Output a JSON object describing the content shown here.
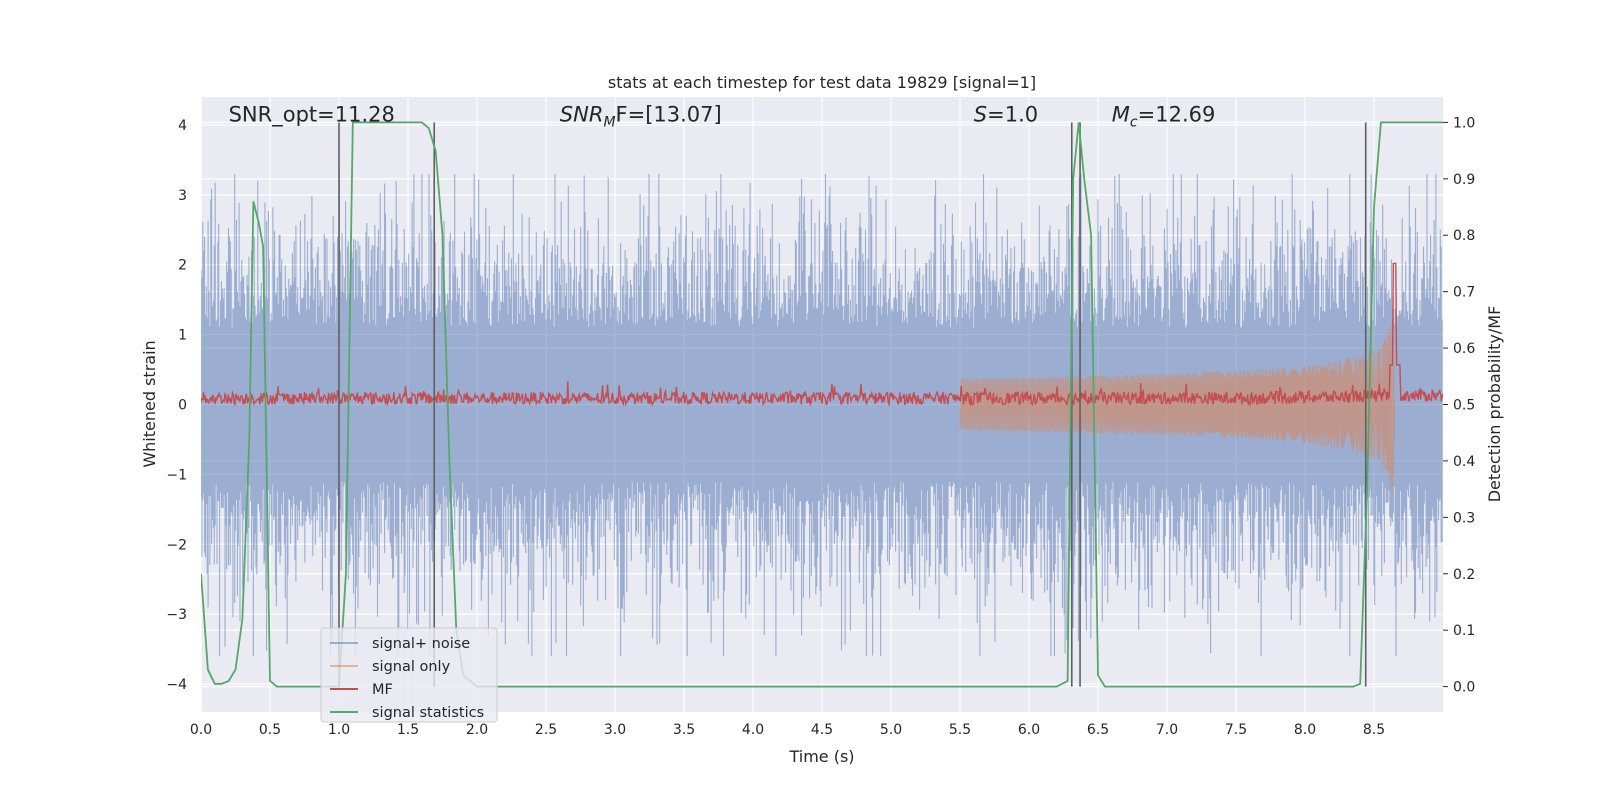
{
  "chart_data": {
    "type": "line",
    "title": "stats at each timestep for test data 19829 [signal=1]",
    "xlabel": "Time (s)",
    "ylabel": "Whitened strain",
    "y2label": "Detection probability/MF",
    "xlim": [
      0,
      9.0
    ],
    "ylim": [
      -4.4,
      4.4
    ],
    "y2lim": [
      -0.045,
      1.045
    ],
    "xticks": [
      0.0,
      0.5,
      1.0,
      1.5,
      2.0,
      2.5,
      3.0,
      3.5,
      4.0,
      4.5,
      5.0,
      5.5,
      6.0,
      6.5,
      7.0,
      7.5,
      8.0,
      8.5
    ],
    "xtick_labels": [
      "0.0",
      "0.5",
      "1.0",
      "1.5",
      "2.0",
      "2.5",
      "3.0",
      "3.5",
      "4.0",
      "4.5",
      "5.0",
      "5.5",
      "6.0",
      "6.5",
      "7.0",
      "7.5",
      "8.0",
      "8.5"
    ],
    "yticks": [
      4,
      3,
      2,
      1,
      0,
      -1,
      -2,
      -3,
      -4
    ],
    "ytick_labels": [
      "4",
      "3",
      "2",
      "1",
      "0",
      "−1",
      "−2",
      "−3",
      "−4"
    ],
    "y2ticks": [
      1.0,
      0.9,
      0.8,
      0.7,
      0.6,
      0.5,
      0.4,
      0.3,
      0.2,
      0.1,
      0.0
    ],
    "y2tick_labels": [
      "1.0",
      "0.9",
      "0.8",
      "0.7",
      "0.6",
      "0.5",
      "0.4",
      "0.3",
      "0.2",
      "0.1",
      "0.0"
    ],
    "grid": true,
    "legend_placement": "lower-left",
    "series": [
      {
        "name": "signal+ noise",
        "color": "#4c72b0",
        "kind": "noise band",
        "envelope_low": -3.6,
        "envelope_high": 3.3
      },
      {
        "name": "signal only",
        "color": "#dd8452",
        "kind": "chirp",
        "start_x": 5.5,
        "peak_x": 8.65,
        "peak_amplitude": 2.0
      },
      {
        "name": "MF",
        "color": "#c44e52",
        "axis": "right",
        "baseline": 0.51,
        "peak_x": 8.65,
        "peak_value": 0.75
      },
      {
        "name": "signal statistics",
        "color": "#55a868",
        "axis": "right",
        "x": [
          0.0,
          0.05,
          0.1,
          0.15,
          0.2,
          0.25,
          0.3,
          0.35,
          0.38,
          0.42,
          0.45,
          0.5,
          0.55,
          0.6,
          0.8,
          1.0,
          1.05,
          1.1,
          1.2,
          1.4,
          1.5,
          1.6,
          1.65,
          1.7,
          1.75,
          1.8,
          1.85,
          1.9,
          2.0,
          2.5,
          3.0,
          3.5,
          4.0,
          4.5,
          5.0,
          5.5,
          6.0,
          6.2,
          6.28,
          6.32,
          6.36,
          6.4,
          6.45,
          6.5,
          6.55,
          6.6,
          7.0,
          7.5,
          8.0,
          8.3,
          8.35,
          8.4,
          8.45,
          8.5,
          8.55,
          8.6,
          8.65,
          8.7,
          9.0
        ],
        "y": [
          0.2,
          0.03,
          0.005,
          0.005,
          0.01,
          0.03,
          0.12,
          0.44,
          0.86,
          0.82,
          0.78,
          0.01,
          0.0,
          0.0,
          0.0,
          0.0,
          0.2,
          1.0,
          1.0,
          1.0,
          1.0,
          1.0,
          0.99,
          0.95,
          0.8,
          0.4,
          0.1,
          0.02,
          0.0,
          0.0,
          0.0,
          0.0,
          0.0,
          0.0,
          0.0,
          0.0,
          0.0,
          0.0,
          0.01,
          0.9,
          1.0,
          0.9,
          0.8,
          0.02,
          0.0,
          0.0,
          0.0,
          0.0,
          0.0,
          0.0,
          0.0,
          0.005,
          0.35,
          0.85,
          1.0,
          1.0,
          1.0,
          1.0,
          1.0
        ]
      },
      {
        "name": "",
        "color": "#606060",
        "kind": "detection markers",
        "x": [
          1.0,
          1.69,
          6.31,
          6.37,
          8.44
        ]
      }
    ],
    "annotations": [
      {
        "text": "SNR_opt=11.28",
        "x": 0.2,
        "y": 4.05
      },
      {
        "text": "SNR_MF=[13.07]",
        "main": "SNR",
        "sub": "M",
        "post": "F=[13.07]",
        "x": 2.6,
        "y": 4.05
      },
      {
        "text": "S=1.0",
        "main": "S",
        "post": "=1.0",
        "x": 5.6,
        "y": 4.05
      },
      {
        "text": "M_c=12.69",
        "main": "M",
        "sub": "c",
        "post": "=12.69",
        "x": 6.6,
        "y": 4.05
      }
    ]
  }
}
